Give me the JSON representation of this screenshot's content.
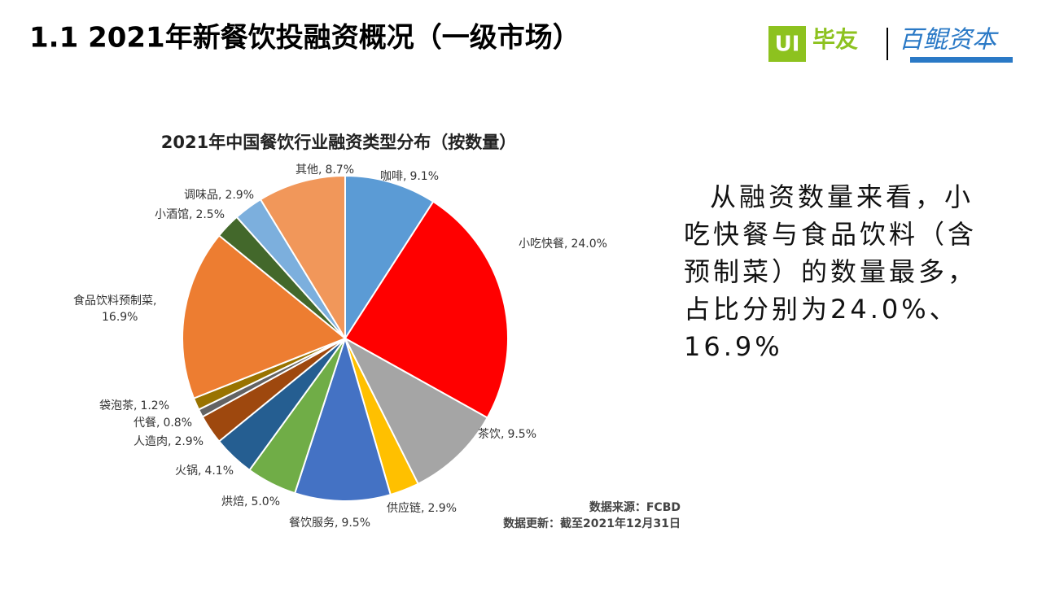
{
  "slide": {
    "title": "1.1  2021年新餐饮投融资概况（一级市场）",
    "logo_left_mark": "UI",
    "logo_left_text": "毕友",
    "logo_right_text": "百鲲资本",
    "body_lines": [
      "从融资数量来看，小",
      "吃快餐与食品饮料（含",
      "预制菜）的数量最多，",
      "占比分别为24.0%、",
      "16.9%"
    ],
    "source": "数据来源：FCBD",
    "updated": "数据更新：截至2021年12月31日"
  },
  "chart_data": {
    "type": "pie",
    "title": "2021年中国餐饮行业融资类型分布（按数量）",
    "label_separator": ",",
    "categories": [
      "咖啡",
      "小吃快餐",
      "茶饮",
      "供应链",
      "餐饮服务",
      "烘焙",
      "火锅",
      "人造肉",
      "代餐",
      "袋泡茶",
      "食品饮料预制菜",
      "小酒馆",
      "调味品",
      "其他"
    ],
    "values": [
      9.1,
      24.0,
      9.5,
      2.9,
      9.5,
      5.0,
      4.1,
      2.9,
      0.8,
      1.2,
      16.9,
      2.5,
      2.9,
      8.7
    ],
    "value_labels": [
      "9.1%",
      "24.0%",
      "9.5%",
      "2.9%",
      "9.5%",
      "5.0%",
      "4.1%",
      "2.9%",
      "0.8%",
      "1.2%",
      "16.9%",
      "2.5%",
      "2.9%",
      "8.7%"
    ],
    "colors": [
      "#5b9bd5",
      "#ff0000",
      "#a5a5a5",
      "#ffc000",
      "#4472c4",
      "#70ad47",
      "#255e91",
      "#9e480e",
      "#636363",
      "#997300",
      "#ed7d31",
      "#43682b",
      "#7cafdd",
      "#f1975a"
    ]
  }
}
